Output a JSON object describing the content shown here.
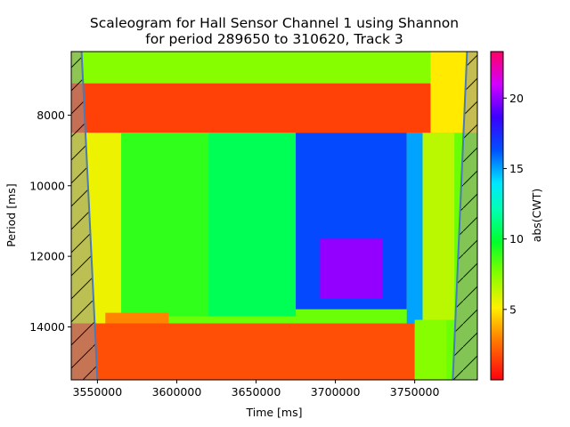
{
  "chart_data": {
    "type": "heatmap",
    "title_lines": [
      "Scaleogram for Hall Sensor Channel 1 using Shannon",
      "for period 289650 to 310620, Track 3"
    ],
    "xlabel": "Time [ms]",
    "ylabel": "Period [ms]",
    "colorbar_label": "abs(CWT)",
    "colormap": "gist_rainbow_r",
    "xlim": [
      3533500,
      3789500
    ],
    "ylim": [
      15500,
      6200
    ],
    "y_inverted": true,
    "x_ticks": [
      3550000,
      3600000,
      3650000,
      3700000,
      3750000
    ],
    "x_tick_labels": [
      "3550000",
      "3600000",
      "3650000",
      "3700000",
      "3750000"
    ],
    "y_ticks": [
      8000,
      10000,
      12000,
      14000
    ],
    "y_tick_labels": [
      "8000",
      "10000",
      "12000",
      "14000"
    ],
    "colorbar_range": [
      0,
      23.3
    ],
    "colorbar_ticks": [
      5,
      10,
      15,
      20
    ],
    "colorbar_tick_labels": [
      "5",
      "10",
      "15",
      "20"
    ],
    "cone_of_influence": {
      "hatched": true,
      "left_boundary": [
        [
          3540000,
          6200
        ],
        [
          3550000,
          15500
        ]
      ],
      "right_boundary": [
        [
          3783000,
          6200
        ],
        [
          3774000,
          15500
        ]
      ]
    },
    "regions": [
      {
        "x": [
          3533500,
          3789500
        ],
        "y": [
          6200,
          15500
        ],
        "value": 8.0
      },
      {
        "x": [
          3533500,
          3760000
        ],
        "y": [
          6200,
          7100
        ],
        "value": 7.5
      },
      {
        "x": [
          3533500,
          3760000
        ],
        "y": [
          7100,
          8500
        ],
        "value": 1.5
      },
      {
        "x": [
          3760000,
          3789500
        ],
        "y": [
          6200,
          8500
        ],
        "value": 5.0
      },
      {
        "x": [
          3533500,
          3565000
        ],
        "y": [
          8500,
          13900
        ],
        "value": 5.5
      },
      {
        "x": [
          3565000,
          3620000
        ],
        "y": [
          8500,
          13700
        ],
        "value": 9.0
      },
      {
        "x": [
          3620000,
          3675000
        ],
        "y": [
          8500,
          13700
        ],
        "value": 10.5
      },
      {
        "x": [
          3675000,
          3745000
        ],
        "y": [
          8500,
          13500
        ],
        "value": 16.5
      },
      {
        "x": [
          3690000,
          3730000
        ],
        "y": [
          11500,
          13200
        ],
        "value": 20.0
      },
      {
        "x": [
          3745000,
          3755000
        ],
        "y": [
          8500,
          14000
        ],
        "value": 15.0
      },
      {
        "x": [
          3533500,
          3750000
        ],
        "y": [
          13900,
          15500
        ],
        "value": 1.8
      },
      {
        "x": [
          3555000,
          3595000
        ],
        "y": [
          13600,
          13900
        ],
        "value": 3.0
      },
      {
        "x": [
          3750000,
          3770000
        ],
        "y": [
          13800,
          15500
        ],
        "value": 7.5
      },
      {
        "x": [
          3755000,
          3775000
        ],
        "y": [
          8500,
          13800
        ],
        "value": 6.5
      }
    ]
  }
}
